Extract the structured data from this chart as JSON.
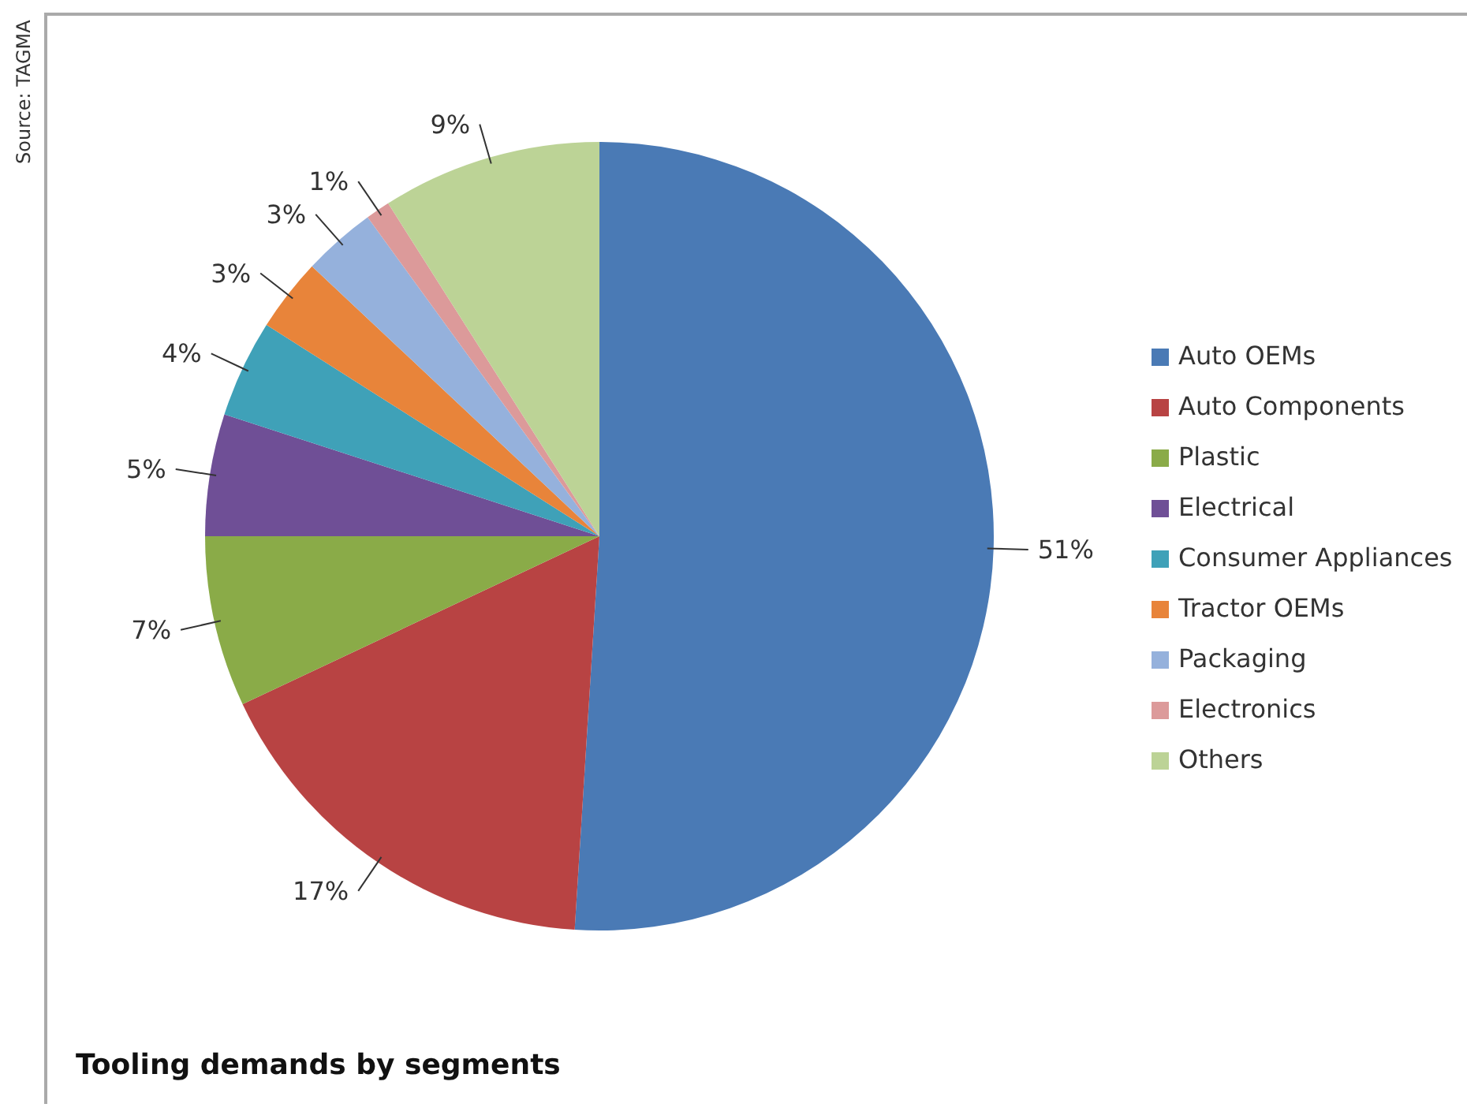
{
  "chart_data": {
    "type": "pie",
    "title": "Tooling demands by segments",
    "annotations": [
      "Source: TAGMA"
    ],
    "categories": [
      "Auto OEMs",
      "Auto Components",
      "Plastic",
      "Electrical",
      "Consumer Appliances",
      "Tractor OEMs",
      "Packaging",
      "Electronics",
      "Others"
    ],
    "values": [
      51,
      17,
      7,
      5,
      4,
      3,
      3,
      1,
      9
    ],
    "value_labels": [
      "51%",
      "17%",
      "7%",
      "5%",
      "4%",
      "3%",
      "3%",
      "1%",
      "9%"
    ],
    "colors": [
      "#4a7ab5",
      "#b84343",
      "#8aab48",
      "#6f4f96",
      "#3fa1b8",
      "#e8843a",
      "#95b1dc",
      "#dc9a9a",
      "#bcd396"
    ],
    "legend": "right"
  }
}
